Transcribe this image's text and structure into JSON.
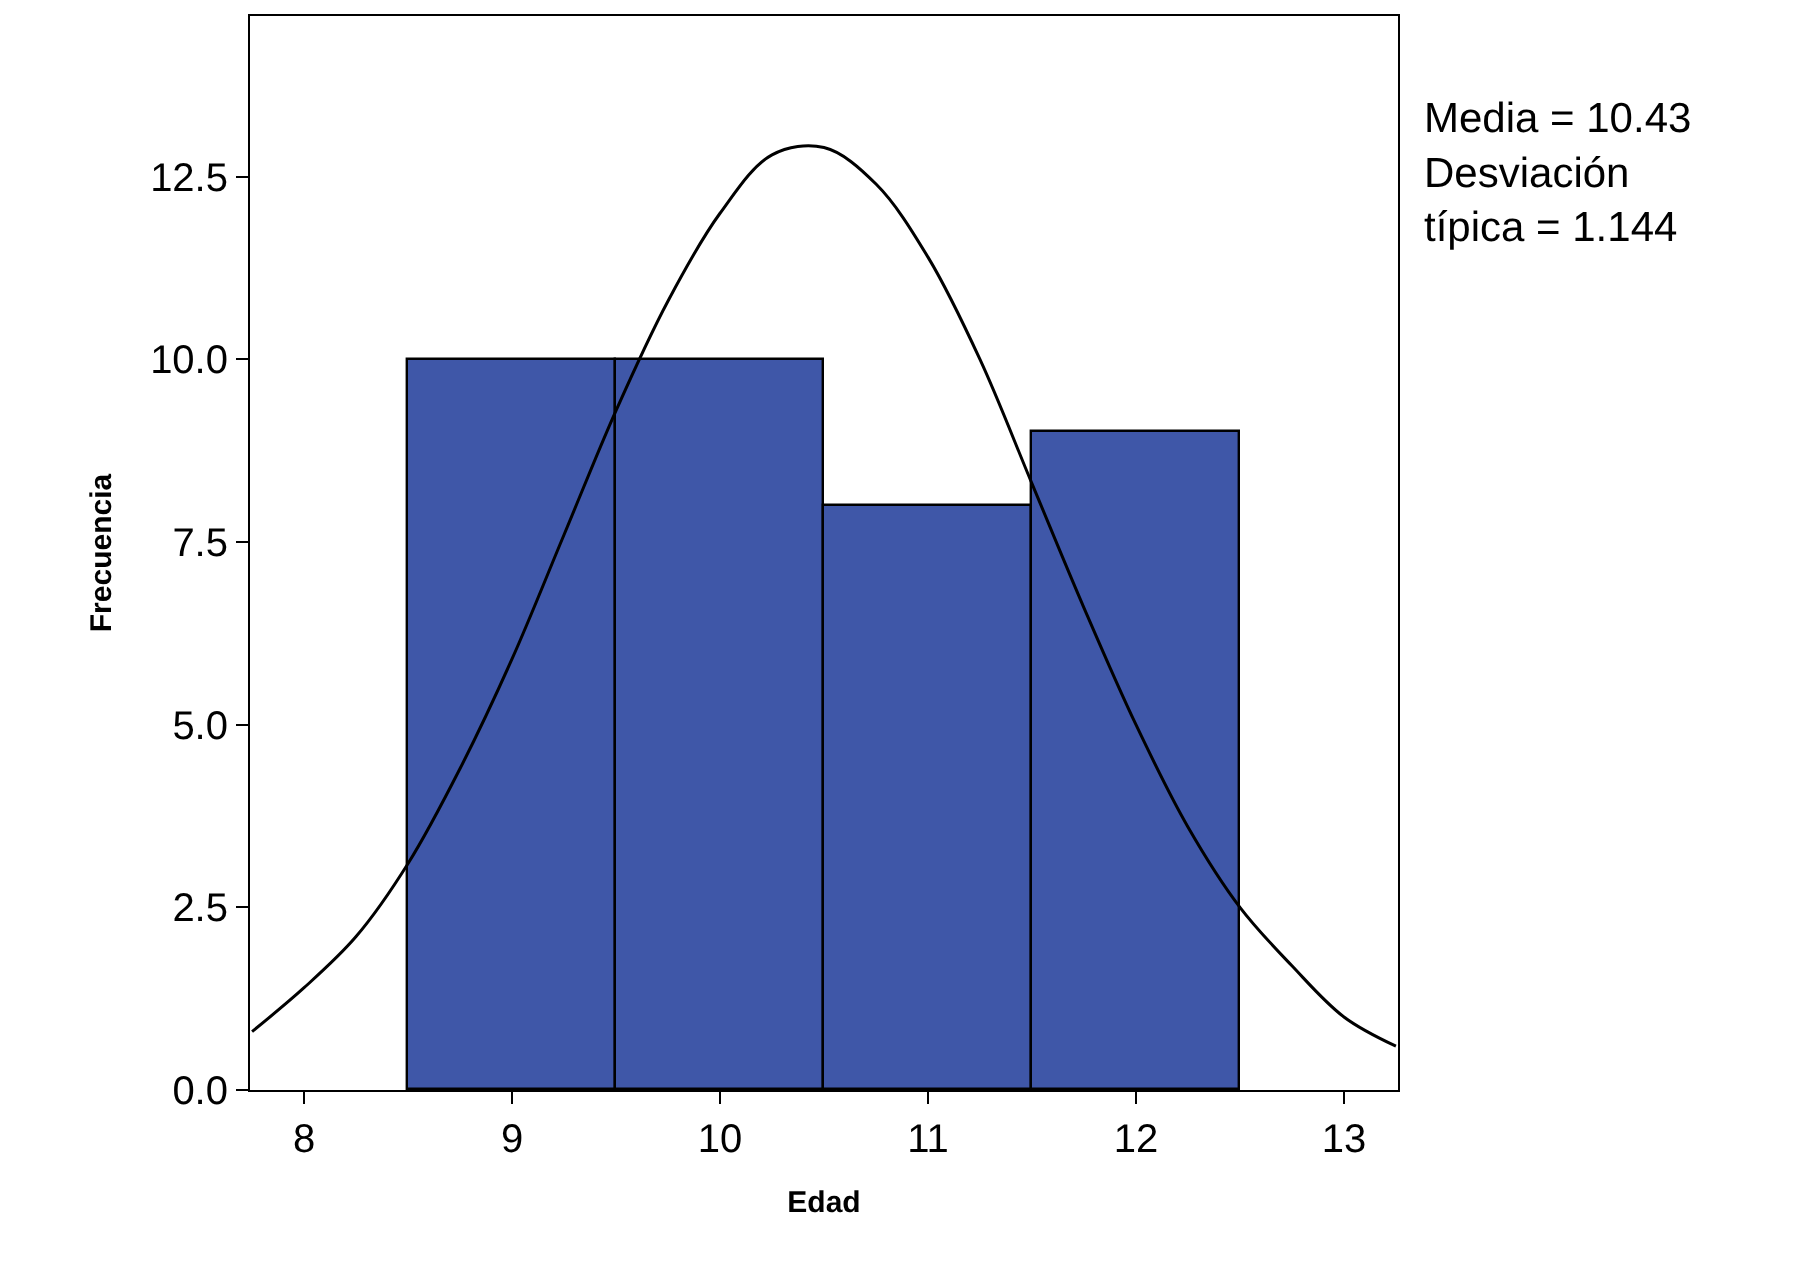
{
  "chart_data": {
    "type": "histogram",
    "xlabel": "Edad",
    "ylabel": "Frecuencia",
    "bins": [
      8.5,
      9.5,
      10.5,
      11.5,
      12.5
    ],
    "values": [
      10,
      10,
      8,
      9
    ],
    "color": "#3f57a8",
    "series": [
      {
        "type": "line",
        "color": "#000000",
        "x": [
          7.75,
          8.0,
          8.25,
          8.5,
          8.75,
          9.0,
          9.25,
          9.5,
          9.75,
          10.0,
          10.25,
          10.5,
          10.75,
          11.0,
          11.25,
          11.5,
          11.75,
          12.0,
          12.25,
          12.5,
          12.75,
          13.0,
          13.25
        ],
        "values": [
          0.8,
          1.4,
          2.1,
          3.1,
          4.4,
          5.9,
          7.6,
          9.3,
          10.8,
          12.0,
          12.8,
          12.9,
          12.4,
          11.4,
          10.0,
          8.3,
          6.6,
          5.0,
          3.6,
          2.5,
          1.7,
          1.0,
          0.6
        ]
      }
    ],
    "xlim": [
      7.74,
      13.26
    ],
    "xticks": [
      8,
      9,
      10,
      11,
      12,
      13
    ],
    "ylim": [
      0,
      14.7
    ],
    "yticks": [
      {
        "value": 0,
        "label": "0.0"
      },
      {
        "value": 2.5,
        "label": "2.5"
      },
      {
        "value": 5,
        "label": "5.0"
      },
      {
        "value": 7.5,
        "label": "7.5"
      },
      {
        "value": 10,
        "label": "10.0"
      },
      {
        "value": 12.5,
        "label": "12.5"
      }
    ],
    "annotations": [
      "Media = 10.43\nDesviación\ntípica = 1.144"
    ]
  }
}
